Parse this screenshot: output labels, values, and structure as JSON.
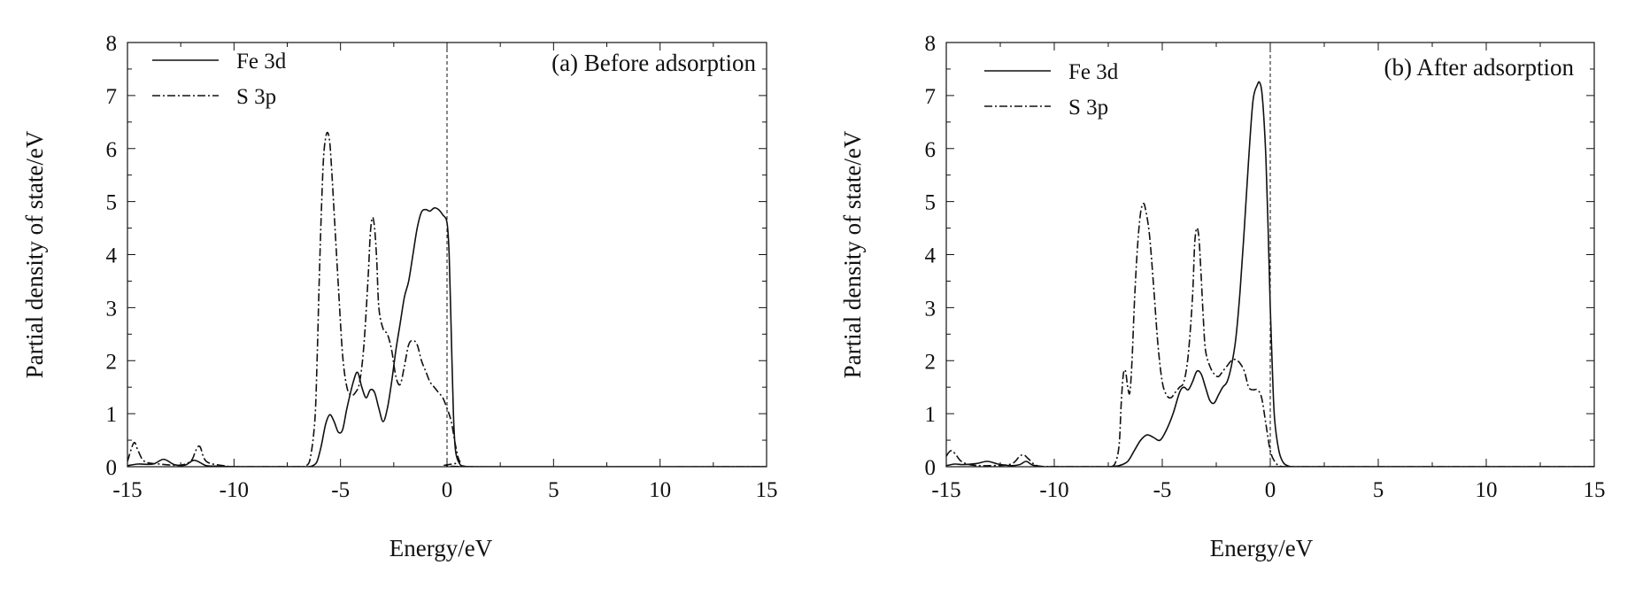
{
  "chart_data": [
    {
      "type": "line",
      "annotation": "(a) Before adsorption",
      "xlabel": "Energy/eV",
      "ylabel": "Partial density of state/eV",
      "xlim": [
        -15,
        15
      ],
      "ylim": [
        0,
        8
      ],
      "xticks": [
        "-15",
        "-10",
        "-5",
        "0",
        "5",
        "10",
        "15"
      ],
      "yticks": [
        "0",
        "1",
        "2",
        "3",
        "4",
        "5",
        "6",
        "7",
        "8"
      ],
      "fermi_line_x": 0,
      "legend_position": "top-left",
      "series": [
        {
          "name": "Fe 3d",
          "style": "solid",
          "x": [
            -15,
            -14.5,
            -13.8,
            -13.3,
            -12.8,
            -12.3,
            -11.9,
            -11.6,
            -11.3,
            -10.8,
            -10,
            -9,
            -8,
            -7,
            -6.5,
            -6.3,
            -6.1,
            -5.9,
            -5.7,
            -5.5,
            -5.3,
            -5.1,
            -4.9,
            -4.7,
            -4.4,
            -4.2,
            -4.0,
            -3.8,
            -3.6,
            -3.4,
            -3.2,
            -3.0,
            -2.8,
            -2.6,
            -2.4,
            -2.2,
            -2.0,
            -1.8,
            -1.6,
            -1.4,
            -1.2,
            -1.0,
            -0.8,
            -0.6,
            -0.4,
            -0.2,
            0.0,
            0.1,
            0.2,
            0.3,
            0.4,
            0.6,
            0.8,
            1.0,
            1.5,
            15
          ],
          "y": [
            0.02,
            0.05,
            0.05,
            0.14,
            0.04,
            0.03,
            0.12,
            0.08,
            0.02,
            0.01,
            0.0,
            0.0,
            0.0,
            0.0,
            0.0,
            0.02,
            0.1,
            0.4,
            0.8,
            0.98,
            0.85,
            0.65,
            0.7,
            1.1,
            1.6,
            1.78,
            1.5,
            1.3,
            1.45,
            1.4,
            1.1,
            0.85,
            1.1,
            1.6,
            2.2,
            2.7,
            3.2,
            3.5,
            4.0,
            4.5,
            4.8,
            4.85,
            4.82,
            4.88,
            4.85,
            4.75,
            4.6,
            4.0,
            2.5,
            1.0,
            0.3,
            0.05,
            0.01,
            0.0,
            0.0,
            0.0
          ]
        },
        {
          "name": "S 3p",
          "style": "dash-dot",
          "x": [
            -15,
            -14.7,
            -14.5,
            -14.2,
            -13.5,
            -12.5,
            -12.0,
            -11.8,
            -11.6,
            -11.3,
            -10.5,
            -10,
            -9,
            -8,
            -7,
            -6.6,
            -6.4,
            -6.2,
            -6.1,
            -6.0,
            -5.9,
            -5.8,
            -5.7,
            -5.6,
            -5.5,
            -5.4,
            -5.3,
            -5.1,
            -4.9,
            -4.7,
            -4.5,
            -4.3,
            -4.1,
            -3.9,
            -3.7,
            -3.6,
            -3.5,
            -3.4,
            -3.3,
            -3.2,
            -3.0,
            -2.8,
            -2.6,
            -2.4,
            -2.2,
            -2.0,
            -1.8,
            -1.6,
            -1.4,
            -1.2,
            -1.0,
            -0.8,
            -0.6,
            -0.4,
            -0.2,
            0.0,
            0.2,
            0.4,
            0.6,
            1.0,
            15
          ],
          "y": [
            0.1,
            0.45,
            0.3,
            0.1,
            0.05,
            0.03,
            0.12,
            0.3,
            0.38,
            0.1,
            0.02,
            0.0,
            0.0,
            0.0,
            0.0,
            0.02,
            0.2,
            0.9,
            2.0,
            3.5,
            4.8,
            5.8,
            6.2,
            6.3,
            6.1,
            5.5,
            4.8,
            3.4,
            2.1,
            1.5,
            1.35,
            1.4,
            1.6,
            2.3,
            3.6,
            4.4,
            4.7,
            4.5,
            3.9,
            3.0,
            2.6,
            2.5,
            2.2,
            1.7,
            1.55,
            1.9,
            2.3,
            2.38,
            2.3,
            2.0,
            1.8,
            1.6,
            1.5,
            1.4,
            1.3,
            1.1,
            0.85,
            0.4,
            0.1,
            0.0,
            0.0
          ]
        }
      ]
    },
    {
      "type": "line",
      "annotation": "(b) After adsorption",
      "xlabel": "Energy/eV",
      "ylabel": "Partial density of state/eV",
      "xlim": [
        -15,
        15
      ],
      "ylim": [
        0,
        8
      ],
      "xticks": [
        "-15",
        "-10",
        "-5",
        "0",
        "5",
        "10",
        "15"
      ],
      "yticks": [
        "0",
        "1",
        "2",
        "3",
        "4",
        "5",
        "6",
        "7",
        "8"
      ],
      "fermi_line_x": 0,
      "legend_position": "top-left",
      "series": [
        {
          "name": "Fe 3d",
          "style": "solid",
          "x": [
            -15,
            -14.6,
            -14.2,
            -13.6,
            -13.1,
            -12.6,
            -12.0,
            -11.6,
            -11.3,
            -11.0,
            -10.5,
            -10,
            -9,
            -8,
            -7.5,
            -7.0,
            -6.6,
            -6.3,
            -6.0,
            -5.7,
            -5.4,
            -5.1,
            -4.8,
            -4.5,
            -4.2,
            -4.0,
            -3.8,
            -3.6,
            -3.4,
            -3.2,
            -3.0,
            -2.8,
            -2.6,
            -2.4,
            -2.2,
            -2.0,
            -1.8,
            -1.6,
            -1.4,
            -1.2,
            -1.0,
            -0.8,
            -0.6,
            -0.5,
            -0.4,
            -0.3,
            -0.2,
            -0.1,
            0.0,
            0.1,
            0.2,
            0.4,
            0.6,
            0.8,
            1.0,
            1.5,
            15
          ],
          "y": [
            0.02,
            0.05,
            0.04,
            0.06,
            0.1,
            0.05,
            0.02,
            0.04,
            0.1,
            0.03,
            0.0,
            0.0,
            0.0,
            0.0,
            0.0,
            0.02,
            0.1,
            0.3,
            0.5,
            0.6,
            0.55,
            0.5,
            0.7,
            1.0,
            1.4,
            1.5,
            1.45,
            1.6,
            1.8,
            1.75,
            1.5,
            1.25,
            1.2,
            1.35,
            1.5,
            1.6,
            1.9,
            2.4,
            3.3,
            4.5,
            5.8,
            6.9,
            7.2,
            7.25,
            7.1,
            6.6,
            5.8,
            4.5,
            3.0,
            1.8,
            0.9,
            0.3,
            0.08,
            0.02,
            0.0,
            0.0,
            0.0
          ]
        },
        {
          "name": "S 3p",
          "style": "dash-dot",
          "x": [
            -15,
            -14.8,
            -14.6,
            -14.3,
            -13.8,
            -13.0,
            -12.0,
            -11.6,
            -11.4,
            -11.2,
            -10.8,
            -10,
            -9,
            -8,
            -7.5,
            -7.2,
            -7.0,
            -6.9,
            -6.8,
            -6.7,
            -6.6,
            -6.5,
            -6.4,
            -6.3,
            -6.2,
            -6.1,
            -6.0,
            -5.9,
            -5.8,
            -5.6,
            -5.4,
            -5.2,
            -5.0,
            -4.8,
            -4.6,
            -4.4,
            -4.2,
            -4.0,
            -3.8,
            -3.6,
            -3.5,
            -3.4,
            -3.3,
            -3.2,
            -3.1,
            -3.0,
            -2.8,
            -2.6,
            -2.4,
            -2.2,
            -2.0,
            -1.8,
            -1.6,
            -1.4,
            -1.2,
            -1.0,
            -0.8,
            -0.6,
            -0.4,
            -0.2,
            0.0,
            0.2,
            0.4,
            0.6,
            0.8,
            1.0,
            15
          ],
          "y": [
            0.2,
            0.3,
            0.25,
            0.1,
            0.03,
            0.02,
            0.05,
            0.2,
            0.22,
            0.15,
            0.02,
            0.0,
            0.0,
            0.0,
            0.0,
            0.05,
            0.4,
            1.2,
            1.75,
            1.8,
            1.5,
            1.4,
            2.0,
            3.0,
            3.8,
            4.4,
            4.8,
            4.95,
            4.9,
            4.4,
            3.4,
            2.3,
            1.6,
            1.35,
            1.3,
            1.4,
            1.5,
            1.6,
            2.1,
            3.2,
            4.2,
            4.5,
            4.3,
            3.6,
            2.8,
            2.2,
            1.9,
            1.75,
            1.7,
            1.8,
            1.9,
            2.0,
            2.02,
            1.95,
            1.8,
            1.5,
            1.45,
            1.45,
            1.3,
            0.8,
            0.3,
            0.1,
            0.02,
            0.0,
            0.0,
            0.0,
            0.0
          ]
        }
      ]
    }
  ]
}
